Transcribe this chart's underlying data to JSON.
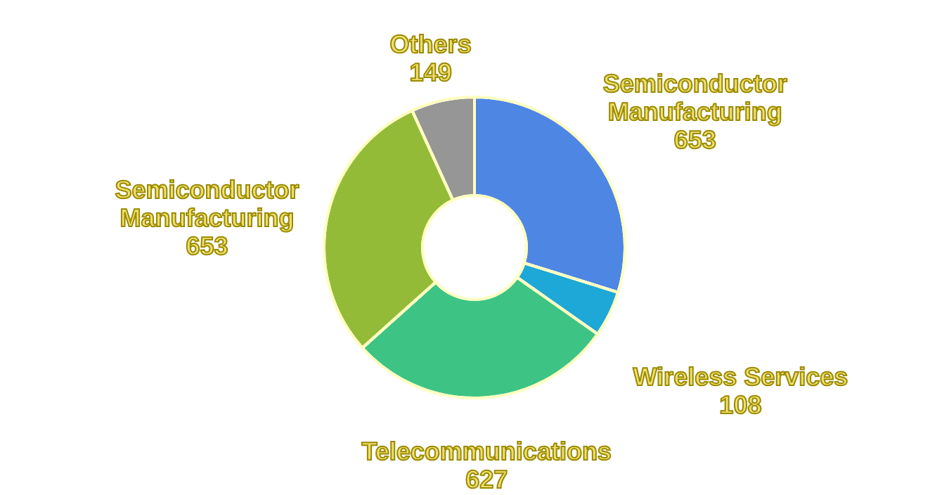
{
  "chart_data": {
    "type": "donut",
    "categories": [
      "Semiconductor Manufacturing",
      "Wireless Services",
      "Telecommunications",
      "Semiconductor Manufacturing",
      "Others"
    ],
    "values": [
      653,
      108,
      627,
      653,
      149
    ],
    "colors": [
      "#4e86e4",
      "#1ea8d8",
      "#3dc484",
      "#94bb38",
      "#969696"
    ],
    "data_labels": true
  }
}
